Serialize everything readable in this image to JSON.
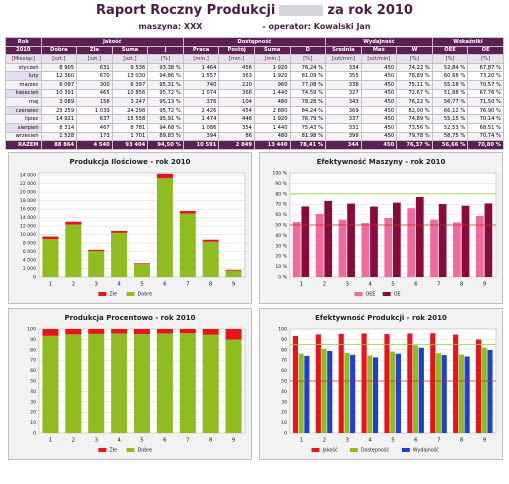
{
  "header": {
    "title_left": "Raport Roczny Produkcji",
    "title_right": "za rok 2010",
    "machine": "maszyna: XXX",
    "operator": "- operator: Kowalski Jan"
  },
  "table": {
    "groups": [
      "Rok",
      "Jakość",
      "Dostępność",
      "Wydajność",
      "Wskaźniki"
    ],
    "columns": [
      "2010",
      "Dobra",
      "Zła",
      "Suma",
      "J",
      "Praca",
      "Postój",
      "Suma",
      "D",
      "Średnia",
      "Max",
      "W",
      "OEE",
      "OE"
    ],
    "units": [
      "[Miesiąc]",
      "[szt.]",
      "[szt.]",
      "[szt.]",
      "[%]",
      "[min.]",
      "[min.]",
      "[min.]",
      "[%]",
      "[szt/min]",
      "[szt/min]",
      "[%]",
      "[%]",
      "[%]"
    ],
    "rows": [
      [
        "styczeń",
        "8 905",
        "631",
        "9 536",
        "93,38 %",
        "1 464",
        "456",
        "1 920",
        "76,24 %",
        "334",
        "450",
        "74,22 %",
        "52,84 %",
        "67,87 %"
      ],
      [
        "luty",
        "12 360",
        "670",
        "13 030",
        "94,86 %",
        "1 557",
        "363",
        "1 920",
        "81,09 %",
        "355",
        "450",
        "78,89 %",
        "60,68 %",
        "73,20 %"
      ],
      [
        "marzec",
        "6 097",
        "300",
        "6 397",
        "95,31 %",
        "740",
        "220",
        "960",
        "77,08 %",
        "338",
        "450",
        "75,11 %",
        "55,18 %",
        "70,57 %"
      ],
      [
        "kwiecień",
        "10 391",
        "465",
        "10 856",
        "95,72 %",
        "1 074",
        "366",
        "1 440",
        "74,59 %",
        "327",
        "450",
        "72,67 %",
        "51,88 %",
        "67,76 %"
      ],
      [
        "maj",
        "3 089",
        "158",
        "3 247",
        "95,13 %",
        "376",
        "104",
        "480",
        "78,28 %",
        "343",
        "450",
        "76,22 %",
        "56,77 %",
        "71,50 %"
      ],
      [
        "czerwiec",
        "23 259",
        "1 039",
        "24 298",
        "95,72 %",
        "2 426",
        "454",
        "2 880",
        "84,24 %",
        "369",
        "450",
        "82,00 %",
        "66,12 %",
        "76,90 %"
      ],
      [
        "lipiec",
        "14 921",
        "637",
        "15 558",
        "95,91 %",
        "1 474",
        "446",
        "1 920",
        "76,79 %",
        "337",
        "450",
        "74,89 %",
        "55,15 %",
        "70,14 %"
      ],
      [
        "sierpień",
        "8 314",
        "467",
        "8 781",
        "94,68 %",
        "1 086",
        "354",
        "1 440",
        "75,43 %",
        "331",
        "450",
        "73,56 %",
        "52,53 %",
        "68,51 %"
      ],
      [
        "wrzesień",
        "1 528",
        "173",
        "1 701",
        "89,83 %",
        "394",
        "86",
        "480",
        "81,98 %",
        "399",
        "450",
        "79,78 %",
        "58,75 %",
        "70,74 %"
      ]
    ],
    "total": [
      "RAZEM",
      "88 864",
      "4 540",
      "93 404",
      "94,50 %",
      "10 591",
      "2 849",
      "13 440",
      "78,41 %",
      "344",
      "450",
      "76,37 %",
      "56,66 %",
      "70,80 %"
    ]
  },
  "chart_data": [
    {
      "type": "bar",
      "stacked": true,
      "title": "Produkcja Ilościowe - rok 2010",
      "categories": [
        "1",
        "2",
        "3",
        "4",
        "5",
        "6",
        "7",
        "8",
        "9"
      ],
      "series": [
        {
          "name": "Złe",
          "color": "#e8141a",
          "values": [
            631,
            670,
            300,
            465,
            158,
            1039,
            637,
            467,
            173
          ]
        },
        {
          "name": "Dobre",
          "color": "#8fbc1f",
          "values": [
            8905,
            12360,
            6097,
            10391,
            3089,
            23259,
            14921,
            8314,
            1528
          ]
        }
      ],
      "ylim": [
        0,
        24500
      ],
      "yticks": [
        0,
        {
          "value": 2000,
          "label": "2 000"
        },
        {
          "value": 4000,
          "label": "4 000"
        },
        {
          "value": 6000,
          "label": "6 000"
        },
        {
          "value": 8000,
          "label": "8 000"
        },
        {
          "value": 10000,
          "label": "10 000"
        },
        {
          "value": 12000,
          "label": "12 000"
        },
        {
          "value": 14000,
          "label": "14 000"
        },
        {
          "value": 16000,
          "label": "16 000"
        },
        {
          "value": 18000,
          "label": "18 000"
        },
        {
          "value": 20000,
          "label": "20 000"
        },
        {
          "value": 22000,
          "label": "22 000"
        },
        {
          "value": 24000,
          "label": "24 000"
        }
      ],
      "grid": true
    },
    {
      "type": "bar",
      "stacked": false,
      "title": "Efektywność Maszyny - rok 2010",
      "categories": [
        "1",
        "2",
        "3",
        "4",
        "5",
        "6",
        "7",
        "8",
        "9"
      ],
      "series": [
        {
          "name": "OEE",
          "color": "#f06aa0",
          "values": [
            52.84,
            60.68,
            55.18,
            51.88,
            56.77,
            66.12,
            55.15,
            52.53,
            58.75
          ]
        },
        {
          "name": "OE",
          "color": "#8b0a3c",
          "values": [
            67.87,
            73.2,
            70.57,
            67.76,
            71.5,
            76.9,
            70.14,
            68.51,
            70.74
          ]
        }
      ],
      "reference_lines": [
        {
          "value": 80,
          "color": "#9acd32"
        },
        {
          "value": 50,
          "color": "#c03030"
        }
      ],
      "ylim": [
        0,
        100
      ],
      "yticks": [
        {
          "value": 0,
          "label": "0 %"
        },
        {
          "value": 10,
          "label": "10 %"
        },
        {
          "value": 20,
          "label": "20 %"
        },
        {
          "value": 30,
          "label": "30 %"
        },
        {
          "value": 40,
          "label": "40 %"
        },
        {
          "value": 50,
          "label": "50 %"
        },
        {
          "value": 60,
          "label": "60 %"
        },
        {
          "value": 70,
          "label": "70 %"
        },
        {
          "value": 80,
          "label": "80 %"
        },
        {
          "value": 90,
          "label": "90 %"
        },
        {
          "value": 100,
          "label": "100 %"
        }
      ],
      "grid": true
    },
    {
      "type": "bar",
      "stacked": true,
      "title": "Produkcja Procentowo - rok 2010",
      "categories": [
        "1",
        "2",
        "3",
        "4",
        "5",
        "6",
        "7",
        "8",
        "9"
      ],
      "series": [
        {
          "name": "Złe",
          "color": "#e8141a",
          "values": [
            6.62,
            5.14,
            4.69,
            4.28,
            4.87,
            4.28,
            4.09,
            5.32,
            10.17
          ]
        },
        {
          "name": "Dobre",
          "color": "#8fbc1f",
          "values": [
            93.38,
            94.86,
            95.31,
            95.72,
            95.13,
            95.72,
            95.91,
            94.68,
            89.83
          ]
        }
      ],
      "ylim": [
        0,
        100
      ],
      "yticks": [
        0,
        10,
        20,
        30,
        40,
        50,
        60,
        70,
        80,
        90,
        100
      ],
      "grid": true
    },
    {
      "type": "bar",
      "stacked": false,
      "title": "Efektywność Produkcji - rok 2010",
      "categories": [
        "1",
        "2",
        "3",
        "4",
        "5",
        "6",
        "7",
        "8",
        "9"
      ],
      "series": [
        {
          "name": "Jakość",
          "color": "#e8141a",
          "values": [
            93.38,
            94.86,
            95.31,
            95.72,
            95.13,
            95.72,
            95.91,
            94.68,
            89.83
          ]
        },
        {
          "name": "Dostępność",
          "color": "#8fbc1f",
          "values": [
            76.24,
            81.09,
            77.08,
            74.59,
            78.28,
            84.24,
            76.79,
            75.43,
            81.98
          ]
        },
        {
          "name": "Wydajność",
          "color": "#1f3fd0",
          "values": [
            74.22,
            78.89,
            75.11,
            72.67,
            76.22,
            82,
            74.89,
            73.56,
            79.78
          ]
        }
      ],
      "reference_lines": [
        {
          "value": 85,
          "color": "#9acd32"
        },
        {
          "value": 50,
          "color": "#c03030"
        }
      ],
      "ylim": [
        0,
        100
      ],
      "yticks": [
        0,
        10,
        20,
        30,
        40,
        50,
        60,
        70,
        80,
        90,
        100
      ],
      "grid": true
    }
  ]
}
